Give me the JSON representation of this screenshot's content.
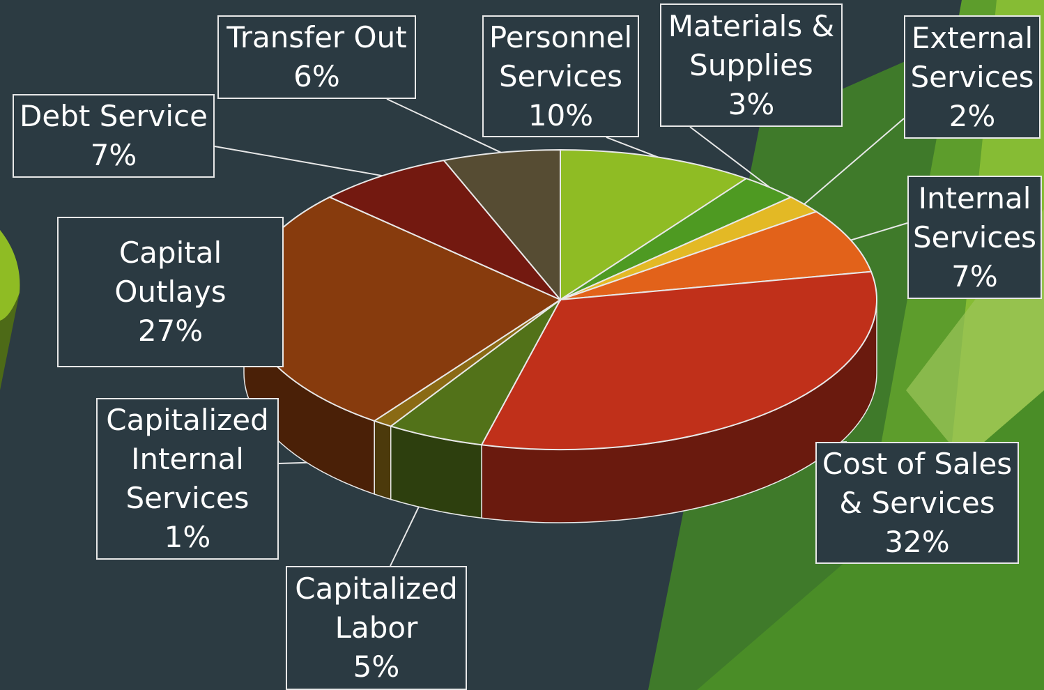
{
  "chart_data": {
    "type": "pie3d",
    "categories": [
      "Personnel Services",
      "Materials & Supplies",
      "External Services",
      "Internal Services",
      "Cost of Sales & Services",
      "Capitalized Labor",
      "Capitalized Internal Services",
      "Capital Outlays",
      "Debt Service",
      "Transfer Out"
    ],
    "values": [
      10,
      3,
      2,
      7,
      32,
      5,
      1,
      27,
      7,
      6
    ],
    "value_labels": [
      "10%",
      "3%",
      "2%",
      "7%",
      "32%",
      "5%",
      "1%",
      "27%",
      "7%",
      "6%"
    ],
    "colors": [
      "#8fbc24",
      "#4e9a22",
      "#e3b925",
      "#e2621a",
      "#c0301a",
      "#527219",
      "#8a6a14",
      "#873b0d",
      "#731910",
      "#564c33"
    ]
  }
}
